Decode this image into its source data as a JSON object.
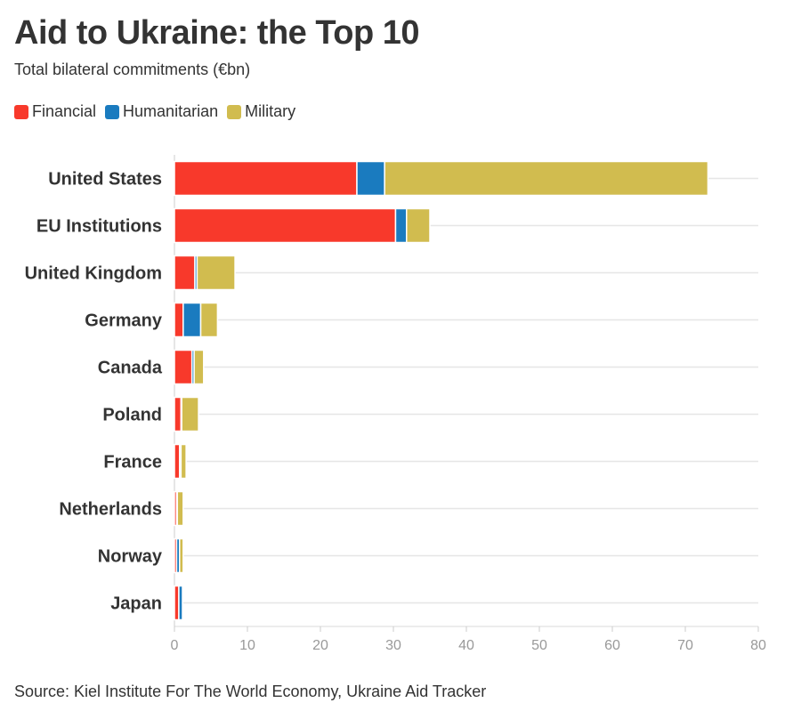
{
  "title": "Aid to Ukraine: the Top 10",
  "subtitle": "Total bilateral commitments (€bn)",
  "source": "Source: Kiel Institute For The World Economy, Ukraine Aid Tracker",
  "legend": [
    {
      "label": "Financial",
      "color": "#f8392b"
    },
    {
      "label": "Humanitarian",
      "color": "#1a7bbf"
    },
    {
      "label": "Military",
      "color": "#d1bc4f"
    }
  ],
  "chart_data": {
    "type": "bar",
    "orientation": "horizontal",
    "stacked": true,
    "categories": [
      "United States",
      "EU Institutions",
      "United Kingdom",
      "Germany",
      "Canada",
      "Poland",
      "France",
      "Netherlands",
      "Norway",
      "Japan"
    ],
    "series": [
      {
        "name": "Financial",
        "color": "#f8392b",
        "values": [
          25.0,
          30.3,
          2.8,
          1.2,
          2.4,
          0.9,
          0.7,
          0.3,
          0.3,
          0.6
        ]
      },
      {
        "name": "Humanitarian",
        "color": "#1a7bbf",
        "values": [
          3.8,
          1.5,
          0.3,
          2.4,
          0.3,
          0.1,
          0.2,
          0.1,
          0.4,
          0.5
        ]
      },
      {
        "name": "Military",
        "color": "#d1bc4f",
        "values": [
          44.3,
          3.2,
          5.2,
          2.3,
          1.3,
          2.3,
          0.7,
          0.8,
          0.5,
          0.0
        ]
      }
    ],
    "xlim": [
      0,
      80
    ],
    "xticks": [
      0,
      10,
      20,
      30,
      40,
      50,
      60,
      70,
      80
    ],
    "grid": true,
    "legend_position": "top-left"
  }
}
